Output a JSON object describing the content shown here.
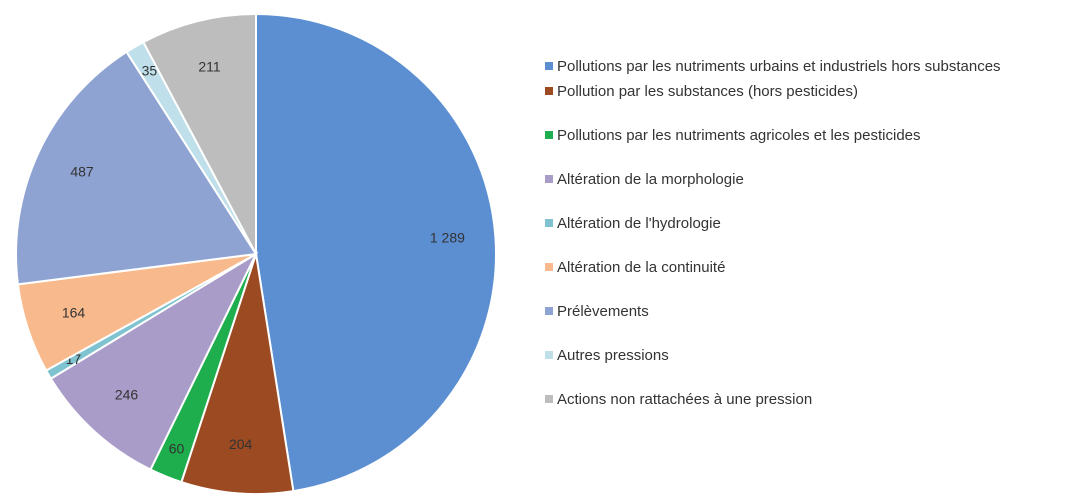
{
  "chart_data": {
    "type": "pie",
    "categories": [
      "Pollutions par les nutriments urbains et industriels hors substances",
      "Pollution par les substances (hors pesticides)",
      "Pollutions par les nutriments agricoles et les pesticides",
      "Altération de la morphologie",
      "Altération de l'hydrologie",
      "Altération de la continuité",
      "Prélèvements",
      "Autres pressions",
      "Actions non rattachées à une pression"
    ],
    "values": [
      1289,
      204,
      60,
      246,
      17,
      164,
      487,
      35,
      211
    ],
    "value_labels": [
      "1 289",
      "204",
      "60",
      "246",
      "17",
      "164",
      "487",
      "35",
      "211"
    ],
    "colors": [
      "#5b8fd1",
      "#9c4a22",
      "#1fae4e",
      "#a99cc9",
      "#7ec3cf",
      "#f8ba8c",
      "#8fa3d3",
      "#bfe0ea",
      "#bdbdbd"
    ],
    "legend": "right"
  }
}
